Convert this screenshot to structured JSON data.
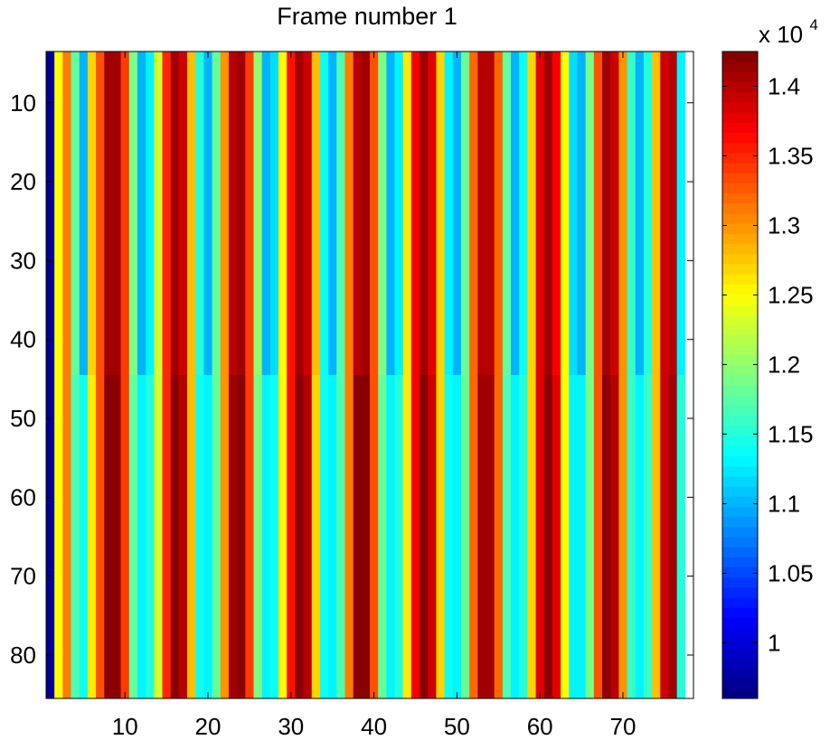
{
  "chart_data": {
    "type": "heatmap",
    "title": "Frame number 1",
    "colormap": "jet",
    "x_range": [
      1,
      78
    ],
    "y_range": [
      3.5,
      85.5
    ],
    "y_reversed": true,
    "x_ticks": [
      "10",
      "20",
      "30",
      "40",
      "50",
      "60",
      "70"
    ],
    "x_tick_values": [
      10,
      20,
      30,
      40,
      50,
      60,
      70
    ],
    "y_ticks": [
      "10",
      "20",
      "30",
      "40",
      "50",
      "60",
      "70",
      "80"
    ],
    "y_tick_values": [
      10,
      20,
      30,
      40,
      50,
      60,
      70,
      80
    ],
    "split_row": 44.5,
    "column_values_top": [
      9700,
      12500,
      13100,
      11800,
      11000,
      12700,
      13300,
      14100,
      14100,
      13400,
      11900,
      11000,
      11300,
      12300,
      13500,
      14100,
      13900,
      12800,
      11500,
      11000,
      11800,
      13000,
      14000,
      14100,
      13400,
      12000,
      11000,
      11200,
      12500,
      13600,
      14100,
      13900,
      12800,
      11400,
      11000,
      11700,
      13100,
      14000,
      14100,
      13300,
      11900,
      11000,
      11300,
      12600,
      13700,
      14100,
      13800,
      12700,
      11300,
      11000,
      11800,
      13200,
      14000,
      14000,
      13200,
      11800,
      11000,
      11400,
      12700,
      13800,
      14100,
      13700,
      12500,
      11200,
      11000,
      11900,
      13300,
      14100,
      13900,
      13000,
      11600,
      11000,
      11500,
      12800,
      13900,
      14000,
      11300
    ],
    "column_values_bottom": [
      9700,
      12500,
      13100,
      11700,
      11400,
      12600,
      13300,
      14200,
      14200,
      13400,
      11800,
      11300,
      11500,
      12300,
      13500,
      14200,
      14000,
      12800,
      11400,
      11300,
      11800,
      13000,
      14100,
      14200,
      13400,
      11900,
      11300,
      11400,
      12500,
      13600,
      14200,
      14000,
      12700,
      11400,
      11300,
      11700,
      13100,
      14200,
      14200,
      13300,
      11800,
      11300,
      11500,
      12600,
      13700,
      14200,
      13900,
      12700,
      11400,
      11300,
      11800,
      13200,
      14100,
      14100,
      13200,
      11700,
      11300,
      11500,
      12700,
      13800,
      14200,
      13800,
      12500,
      11300,
      11300,
      11900,
      13300,
      14200,
      14000,
      13000,
      11600,
      11300,
      11600,
      12800,
      13900,
      14100,
      11500
    ],
    "colorbar": {
      "min": 9600,
      "max": 14250,
      "ticks": [
        "1",
        "1.05",
        "1.1",
        "1.15",
        "1.2",
        "1.25",
        "1.3",
        "1.35",
        "1.4"
      ],
      "tick_values": [
        10000,
        10500,
        11000,
        11500,
        12000,
        12500,
        13000,
        13500,
        14000
      ],
      "multiplier_base": "x 10",
      "multiplier_exp": "4"
    }
  }
}
